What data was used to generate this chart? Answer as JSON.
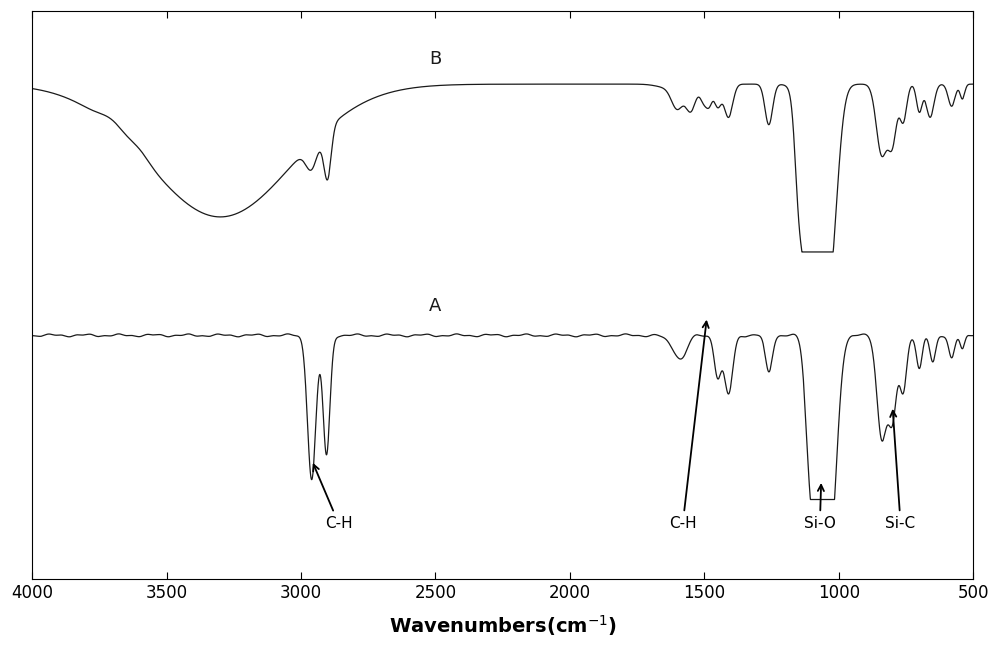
{
  "background_color": "#ffffff",
  "line_color": "#1a1a1a",
  "xlabel": "Wavenumbers(cm⁻¹)",
  "label_A": "A",
  "label_B": "B",
  "xticks": [
    4000,
    3500,
    3000,
    2500,
    2000,
    1500,
    1000,
    500
  ],
  "xtick_labels": [
    "4000",
    "3500",
    "3000",
    "2500",
    "2000",
    "1500",
    "1000",
    "500"
  ]
}
